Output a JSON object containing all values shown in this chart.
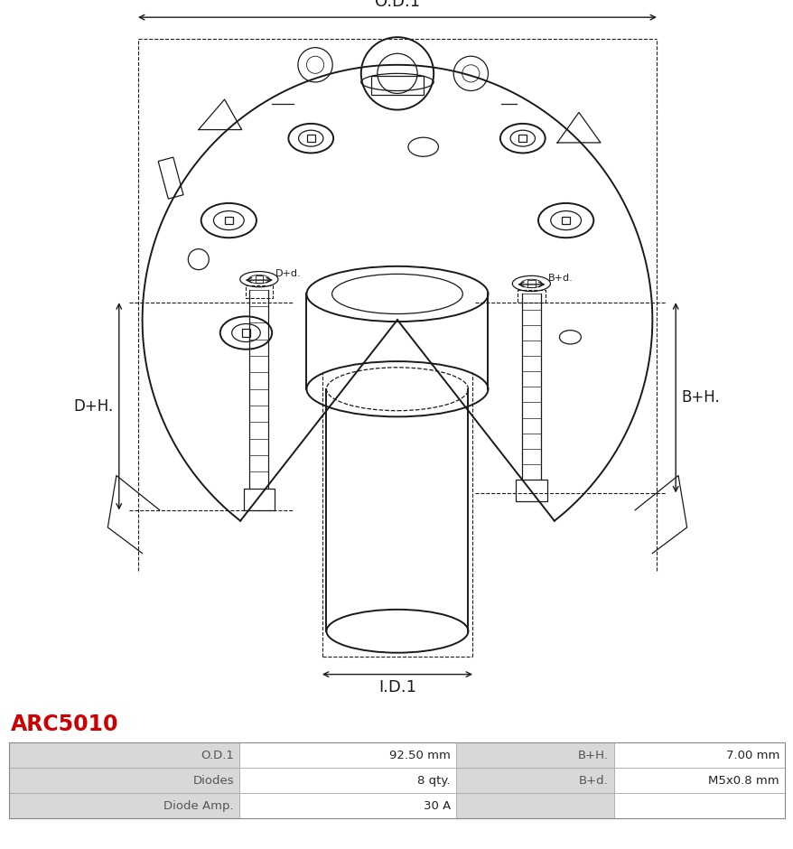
{
  "title": "ARC5010",
  "title_color": "#cc0000",
  "od1_label": "O.D.1",
  "id1_label": "I.D.1",
  "dh_label": "D+H.",
  "bh_label": "B+H.",
  "dd_label": "D+d.",
  "bd_label": "B+d.",
  "table_data": [
    [
      "O.D.1",
      "92.50 mm",
      "B+H.",
      "7.00 mm"
    ],
    [
      "Diodes",
      "8 qty.",
      "B+d.",
      "M5x0.8 mm"
    ],
    [
      "Diode Amp.",
      "30 A",
      "",
      ""
    ]
  ],
  "bg_color": "#ffffff",
  "line_color": "#1a1a1a",
  "table_header_bg": "#d8d8d8",
  "table_row_bg": "#ffffff",
  "dim_color": "#1a1a1a"
}
